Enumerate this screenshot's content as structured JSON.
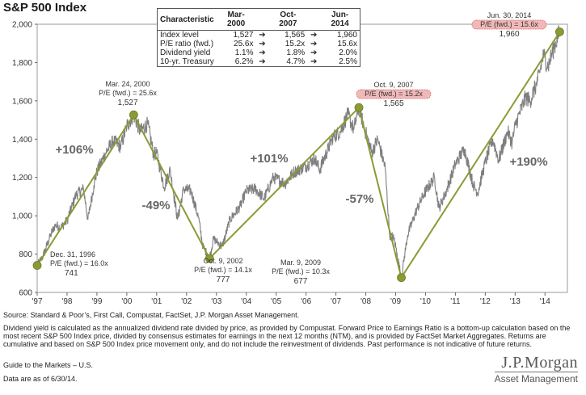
{
  "title": "S&P 500 Index",
  "chart_data": {
    "type": "line",
    "title": "S&P 500 Index",
    "xlim": [
      1997.0,
      2014.75
    ],
    "ylim": [
      600,
      2000
    ],
    "x_ticks": [
      "'97",
      "'98",
      "'99",
      "'00",
      "'01",
      "'02",
      "'03",
      "'04",
      "'05",
      "'06",
      "'07",
      "'08",
      "'09",
      "'10",
      "'11",
      "'12",
      "'13",
      "'14"
    ],
    "y_ticks": [
      "600",
      "800",
      "1,000",
      "1,200",
      "1,400",
      "1,600",
      "1,800",
      "2,000"
    ],
    "y_tick_values": [
      600,
      800,
      1000,
      1200,
      1400,
      1600,
      1800,
      2000
    ],
    "series_color": "#7f7f7f",
    "trend_color": "#8c9a35",
    "series": [
      {
        "values": [
          [
            1997.0,
            741
          ],
          [
            1997.2,
            790
          ],
          [
            1997.45,
            900
          ],
          [
            1997.6,
            950
          ],
          [
            1997.8,
            940
          ],
          [
            1998.0,
            975
          ],
          [
            1998.3,
            1110
          ],
          [
            1998.55,
            1140
          ],
          [
            1998.7,
            980
          ],
          [
            1998.9,
            1160
          ],
          [
            1999.0,
            1230
          ],
          [
            1999.3,
            1330
          ],
          [
            1999.55,
            1390
          ],
          [
            1999.8,
            1360
          ],
          [
            2000.0,
            1470
          ],
          [
            2000.23,
            1527
          ],
          [
            2000.45,
            1440
          ],
          [
            2000.7,
            1480
          ],
          [
            2000.9,
            1320
          ],
          [
            2001.0,
            1330
          ],
          [
            2001.25,
            1150
          ],
          [
            2001.45,
            1240
          ],
          [
            2001.7,
            980
          ],
          [
            2001.9,
            1140
          ],
          [
            2002.15,
            1130
          ],
          [
            2002.4,
            990
          ],
          [
            2002.55,
            840
          ],
          [
            2002.77,
            777
          ],
          [
            2002.9,
            880
          ],
          [
            2003.2,
            840
          ],
          [
            2003.45,
            980
          ],
          [
            2003.8,
            1050
          ],
          [
            2004.0,
            1130
          ],
          [
            2004.3,
            1140
          ],
          [
            2004.6,
            1090
          ],
          [
            2004.9,
            1200
          ],
          [
            2005.3,
            1170
          ],
          [
            2005.6,
            1230
          ],
          [
            2005.9,
            1250
          ],
          [
            2006.3,
            1300
          ],
          [
            2006.45,
            1240
          ],
          [
            2006.9,
            1410
          ],
          [
            2007.15,
            1440
          ],
          [
            2007.4,
            1530
          ],
          [
            2007.6,
            1450
          ],
          [
            2007.77,
            1565
          ],
          [
            2007.95,
            1460
          ],
          [
            2008.2,
            1330
          ],
          [
            2008.4,
            1400
          ],
          [
            2008.65,
            1250
          ],
          [
            2008.8,
            900
          ],
          [
            2008.95,
            880
          ],
          [
            2009.05,
            800
          ],
          [
            2009.19,
            677
          ],
          [
            2009.4,
            900
          ],
          [
            2009.7,
            1030
          ],
          [
            2009.95,
            1115
          ],
          [
            2010.3,
            1200
          ],
          [
            2010.45,
            1040
          ],
          [
            2010.7,
            1130
          ],
          [
            2011.0,
            1270
          ],
          [
            2011.3,
            1350
          ],
          [
            2011.6,
            1160
          ],
          [
            2011.75,
            1120
          ],
          [
            2012.0,
            1280
          ],
          [
            2012.25,
            1400
          ],
          [
            2012.45,
            1290
          ],
          [
            2012.75,
            1440
          ],
          [
            2012.9,
            1380
          ],
          [
            2013.0,
            1470
          ],
          [
            2013.35,
            1620
          ],
          [
            2013.5,
            1600
          ],
          [
            2013.75,
            1700
          ],
          [
            2013.95,
            1840
          ],
          [
            2014.1,
            1780
          ],
          [
            2014.3,
            1880
          ],
          [
            2014.49,
            1960
          ]
        ]
      }
    ],
    "trend": [
      {
        "x": 1997.0,
        "y": 741
      },
      {
        "x": 2000.23,
        "y": 1527
      },
      {
        "x": 2002.77,
        "y": 777
      },
      {
        "x": 2007.77,
        "y": 1565
      },
      {
        "x": 2009.19,
        "y": 677
      },
      {
        "x": 2014.49,
        "y": 1960
      }
    ],
    "points": [
      {
        "date": "Dec. 31, 1996",
        "pe": "P/E (fwd.) = 16.0x",
        "value": "741",
        "highlight": false
      },
      {
        "date": "Mar. 24, 2000",
        "pe": "P/E (fwd.) = 25.6x",
        "value": "1,527",
        "highlight": false
      },
      {
        "date": "Oct. 9, 2002",
        "pe": "P/E (fwd.) = 14.1x",
        "value": "777",
        "highlight": false
      },
      {
        "date": "Oct. 9, 2007",
        "pe": "P/E (fwd.) = 15.2x",
        "value": "1,565",
        "highlight": true
      },
      {
        "date": "Mar. 9, 2009",
        "pe": "P/E (fwd.) = 10.3x",
        "value": "677",
        "highlight": false
      },
      {
        "date": "Jun. 30, 2014",
        "pe": "P/E (fwd.) = 15.6x",
        "value": "1,960",
        "highlight": true
      }
    ],
    "changes": [
      "+106%",
      "-49%",
      "+101%",
      "-57%",
      "+190%"
    ]
  },
  "characteristics": {
    "headers": [
      "Characteristic",
      "Mar-2000",
      "Oct-2007",
      "Jun-2014"
    ],
    "rows": [
      {
        "label": "Index level",
        "values": [
          "1,527",
          "1,565",
          "1,960"
        ]
      },
      {
        "label": "P/E ratio (fwd.)",
        "values": [
          "25.6x",
          "15.2x",
          "15.6x"
        ]
      },
      {
        "label": "Dividend yield",
        "values": [
          "1.1%",
          "1.8%",
          "2.0%"
        ]
      },
      {
        "label": "10-yr. Treasury",
        "values": [
          "6.2%",
          "4.7%",
          "2.5%"
        ]
      }
    ]
  },
  "footer": {
    "source": "Source: Standard & Poor’s, First Call, Compustat, FactSet, J.P. Morgan Asset Management.",
    "notes": "Dividend yield is calculated as the annualized dividend rate divided by price, as provided by Compustat. Forward Price to Earnings Ratio is a bottom-up calculation based on the most recent S&P 500 Index price, divided by consensus estimates for earnings in the next 12 months (NTM), and is provided by FactSet Market Aggregates. Returns are cumulative and based on S&P 500 Index price movement only, and do not include the reinvestment of dividends. Past performance is not indicative of future returns.",
    "guide": "Guide to the Markets – U.S.",
    "as_of": "Data are as of 6/30/14."
  },
  "logo": {
    "name": "J.P.Morgan",
    "sub": "Asset Management"
  }
}
